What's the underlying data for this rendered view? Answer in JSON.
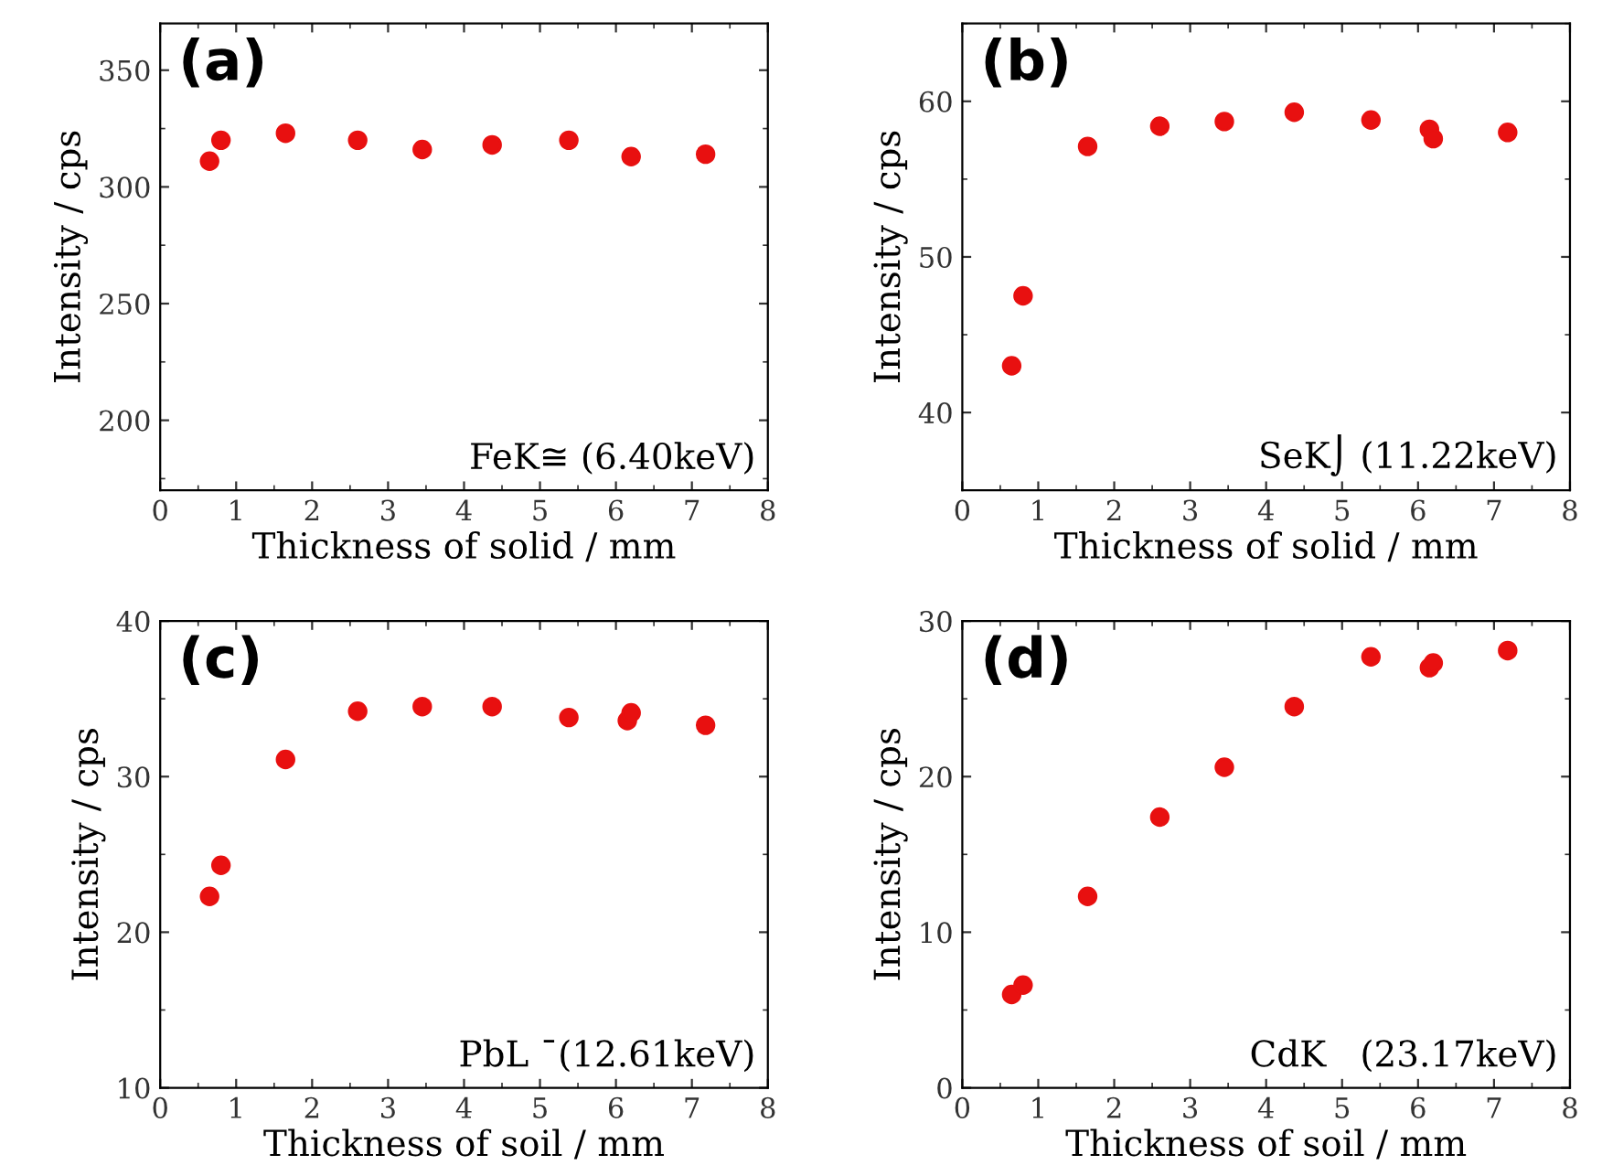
{
  "chart_data": [
    {
      "type": "scatter",
      "xlabel": "Thickness of solid / mm",
      "ylabel": "Intensity / cps",
      "annotations": [
        "(a)",
        "FeK≅ (6.40keV)"
      ],
      "x": [
        0.65,
        0.8,
        1.65,
        2.6,
        3.45,
        4.37,
        5.38,
        6.15,
        6.2,
        7.18
      ],
      "series": [
        {
          "color": "#e81010",
          "values": [
            311,
            320,
            323,
            320,
            316,
            318,
            320,
            null,
            313,
            314
          ]
        }
      ],
      "xlim": [
        0,
        8
      ],
      "xticks": [
        0,
        1,
        2,
        3,
        4,
        5,
        6,
        7,
        8
      ],
      "ylim": [
        170,
        370
      ],
      "yticks": [
        200,
        250,
        300,
        350
      ],
      "marker": "circle",
      "grid": false,
      "legend": false
    },
    {
      "type": "scatter",
      "xlabel": "Thickness of solid / mm",
      "ylabel": "Intensity / cps",
      "annotations": [
        "(b)",
        "SeK⌡ (11.22keV)"
      ],
      "x": [
        0.65,
        0.8,
        1.65,
        2.6,
        3.45,
        4.37,
        5.38,
        6.15,
        6.2,
        7.18
      ],
      "series": [
        {
          "color": "#e81010",
          "values": [
            43,
            47.5,
            57.1,
            58.4,
            58.7,
            59.3,
            58.8,
            58.2,
            57.6,
            58.0
          ]
        }
      ],
      "xlim": [
        0,
        8
      ],
      "xticks": [
        0,
        1,
        2,
        3,
        4,
        5,
        6,
        7,
        8
      ],
      "ylim": [
        35,
        65
      ],
      "yticks": [
        40,
        50,
        60
      ],
      "marker": "circle",
      "grid": false,
      "legend": false
    },
    {
      "type": "scatter",
      "xlabel": "Thickness of soil / mm",
      "ylabel": "Intensity / cps",
      "annotations": [
        "(c)",
        "PbL ¯(12.61keV)"
      ],
      "x": [
        0.65,
        0.8,
        1.65,
        2.6,
        3.45,
        4.37,
        5.38,
        6.15,
        6.2,
        7.18
      ],
      "series": [
        {
          "color": "#e81010",
          "values": [
            22.3,
            24.3,
            31.1,
            34.2,
            34.5,
            34.5,
            33.8,
            33.6,
            34.1,
            33.3
          ]
        }
      ],
      "xlim": [
        0,
        8
      ],
      "xticks": [
        0,
        1,
        2,
        3,
        4,
        5,
        6,
        7,
        8
      ],
      "ylim": [
        10,
        40
      ],
      "yticks": [
        10,
        20,
        30,
        40
      ],
      "marker": "circle",
      "grid": false,
      "legend": false
    },
    {
      "type": "scatter",
      "xlabel": "Thickness of soil / mm",
      "ylabel": "Intensity / cps",
      "annotations": [
        "(d)",
        "CdK   (23.17keV)"
      ],
      "x": [
        0.65,
        0.8,
        1.65,
        2.6,
        3.45,
        4.37,
        5.38,
        6.15,
        6.2,
        7.18
      ],
      "series": [
        {
          "color": "#e81010",
          "values": [
            6.0,
            6.6,
            12.3,
            17.4,
            20.6,
            24.5,
            27.7,
            27.0,
            27.3,
            28.1
          ]
        }
      ],
      "xlim": [
        0,
        8
      ],
      "xticks": [
        0,
        1,
        2,
        3,
        4,
        5,
        6,
        7,
        8
      ],
      "ylim": [
        0,
        30
      ],
      "yticks": [
        0,
        10,
        20,
        30
      ],
      "marker": "circle",
      "grid": false,
      "legend": false
    }
  ]
}
